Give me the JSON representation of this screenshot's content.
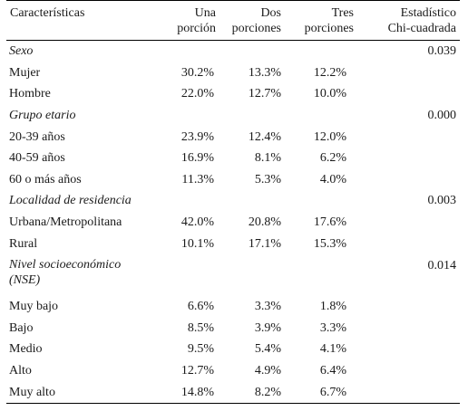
{
  "header": {
    "caracteristicas": "Características",
    "una_porcion": [
      "Una",
      "porción"
    ],
    "dos_porciones": [
      "Dos",
      "porciones"
    ],
    "tres_porciones": [
      "Tres",
      "porciones"
    ],
    "estadistico": [
      "Estadístico",
      "Chi-cuadrada"
    ]
  },
  "groups": [
    {
      "label": "Sexo",
      "chi": "0.039",
      "rows": [
        {
          "label": "Mujer",
          "una": "30.2%",
          "dos": "13.3%",
          "tres": "12.2%"
        },
        {
          "label": "Hombre",
          "una": "22.0%",
          "dos": "12.7%",
          "tres": "10.0%"
        }
      ]
    },
    {
      "label": "Grupo etario",
      "chi": "0.000",
      "rows": [
        {
          "label": "20-39 años",
          "una": "23.9%",
          "dos": "12.4%",
          "tres": "12.0%"
        },
        {
          "label": "40-59 años",
          "una": "16.9%",
          "dos": "8.1%",
          "tres": "6.2%"
        },
        {
          "label": "60 o más años",
          "una": "11.3%",
          "dos": "5.3%",
          "tres": "4.0%"
        }
      ]
    },
    {
      "label": "Localidad de residencia",
      "chi": "0.003",
      "rows": [
        {
          "label": "Urbana/Metropolitana",
          "una": "42.0%",
          "dos": "20.8%",
          "tres": "17.6%"
        },
        {
          "label": "Rural",
          "una": "10.1%",
          "dos": "17.1%",
          "tres": "15.3%"
        }
      ]
    },
    {
      "label": "Nivel socioeconómico (NSE)",
      "chi": "0.014",
      "rows": [
        {
          "label": "Muy bajo",
          "una": "6.6%",
          "dos": "3.3%",
          "tres": "1.8%"
        },
        {
          "label": "Bajo",
          "una": "8.5%",
          "dos": "3.9%",
          "tres": "3.3%"
        },
        {
          "label": "Medio",
          "una": "9.5%",
          "dos": "5.4%",
          "tres": "4.1%"
        },
        {
          "label": "Alto",
          "una": "12.7%",
          "dos": "4.9%",
          "tres": "6.4%"
        },
        {
          "label": "Muy alto",
          "una": "14.8%",
          "dos": "8.2%",
          "tres": "6.7%"
        }
      ]
    }
  ]
}
